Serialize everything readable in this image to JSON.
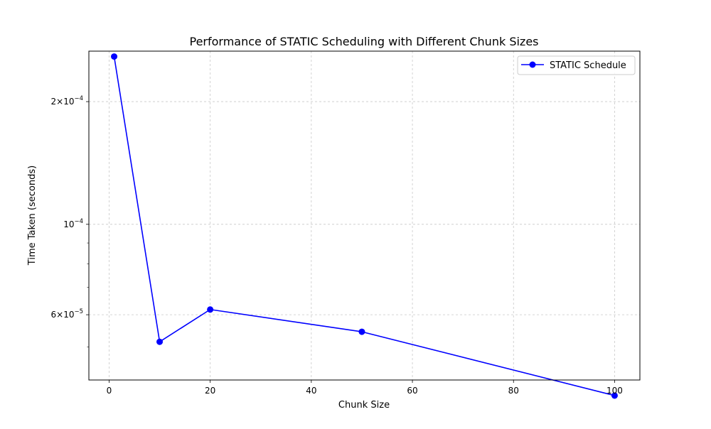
{
  "chart_data": {
    "type": "line",
    "title": "Performance of STATIC Scheduling with Different Chunk Sizes",
    "xlabel": "Chunk Size",
    "ylabel": "Time Taken (seconds)",
    "x_scale": "linear",
    "y_scale": "log",
    "xlim": [
      -4,
      105
    ],
    "ylim": [
      4.15e-05,
      0.000266
    ],
    "x_ticks": [
      0,
      20,
      40,
      60,
      80,
      100
    ],
    "y_major_ticks": [
      {
        "value": 6e-05,
        "mantissa": "6",
        "base": "10",
        "exponent": "−5"
      },
      {
        "value": 0.0001,
        "mantissa": "",
        "base": "10",
        "exponent": "−4"
      },
      {
        "value": 0.0002,
        "mantissa": "2",
        "base": "10",
        "exponent": "−4"
      }
    ],
    "y_minor_ticks": [
      5e-05,
      7e-05,
      8e-05,
      9e-05
    ],
    "grid": true,
    "legend_position": "top-right",
    "series": [
      {
        "name": "STATIC Schedule",
        "color": "#0000ff",
        "marker": "circle",
        "x": [
          1,
          10,
          20,
          50,
          100
        ],
        "y": [
          0.000258,
          5.15e-05,
          6.18e-05,
          5.45e-05,
          3.8e-05
        ]
      }
    ]
  }
}
